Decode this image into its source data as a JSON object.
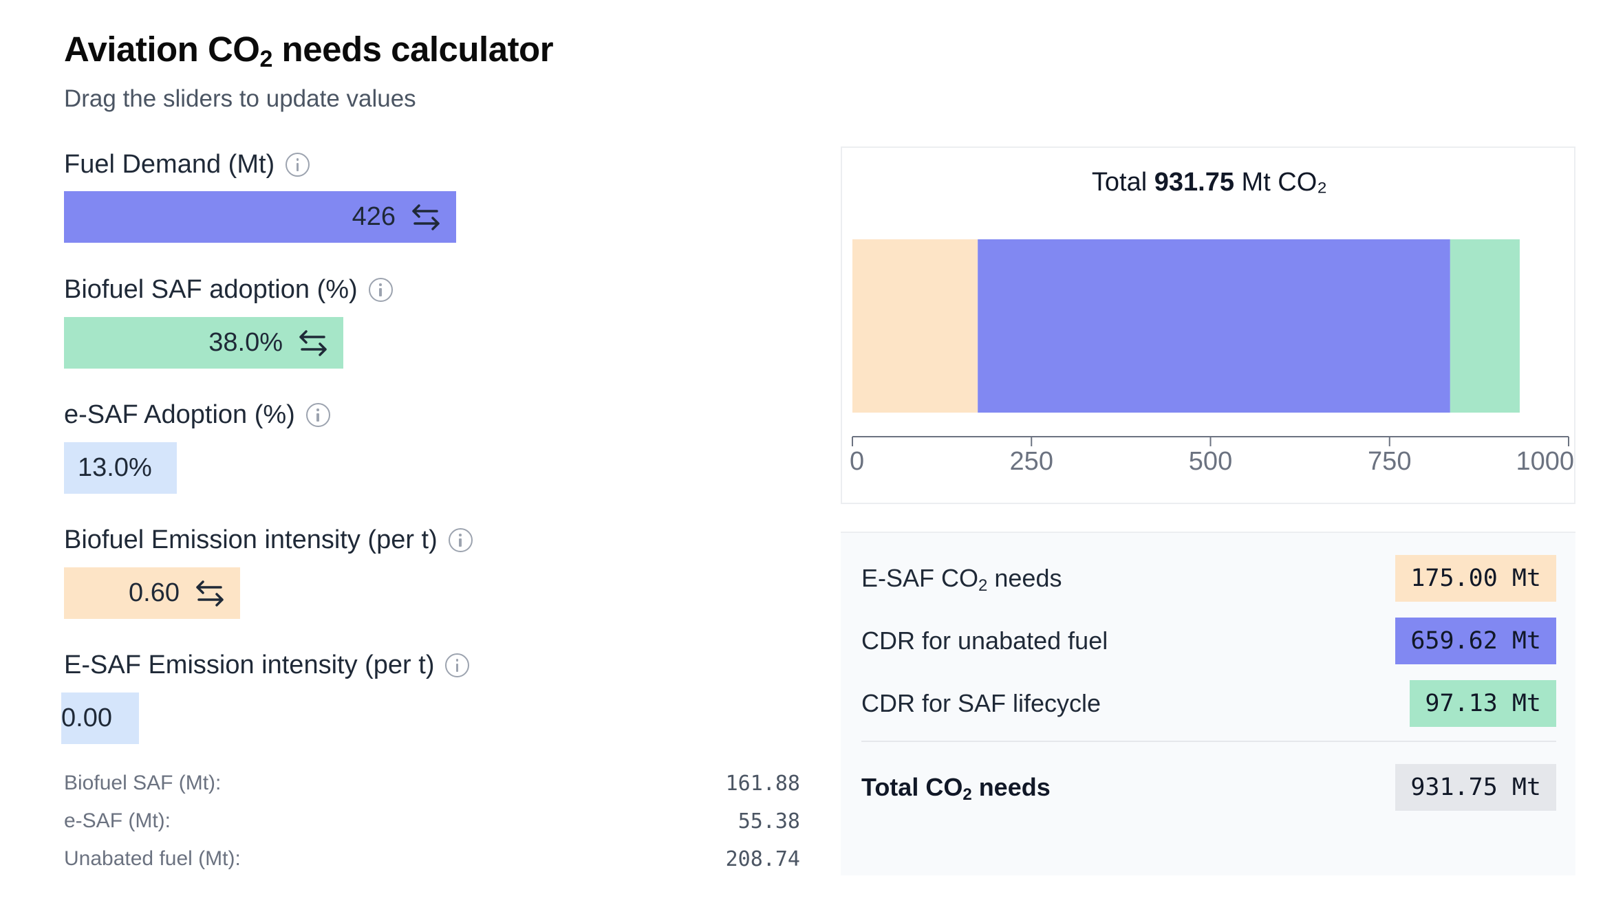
{
  "header": {
    "title_main": "Aviation CO",
    "title_sub": "2",
    "title_rest": " needs calculator",
    "subtitle": "Drag the sliders to update values"
  },
  "controls": [
    {
      "label": "Fuel Demand (Mt)",
      "value": "426",
      "color": "#8188f2",
      "fraction": 0.57
    },
    {
      "label": "Biofuel SAF adoption (%)",
      "value": "38.0%",
      "color": "#a6e6c8",
      "fraction": 0.38
    },
    {
      "label": "e-SAF Adoption (%)",
      "value": "13.0%",
      "color": "#d5e5fb",
      "fraction": 0.13
    },
    {
      "label": "Biofuel Emission intensity (per t)",
      "value": "0.60",
      "color": "#fde4c6",
      "fraction": 0.6
    },
    {
      "label": "E-SAF Emission intensity (per t)",
      "value": "0.00",
      "color": "#d5e5fb",
      "fraction": 0.0
    }
  ],
  "stats": [
    {
      "label": "Biofuel SAF (Mt):",
      "value": "161.88"
    },
    {
      "label": "e-SAF (Mt):",
      "value": "55.38"
    },
    {
      "label": "Unabated fuel (Mt):",
      "value": "208.74"
    }
  ],
  "chart_data": {
    "type": "bar",
    "orientation": "horizontal-stacked",
    "title_prefix": "Total ",
    "title_value": "931.75",
    "title_unit": " Mt CO₂",
    "categories": [
      "Total"
    ],
    "series": [
      {
        "values": [
          175.0
        ],
        "color": "#fde4c6"
      },
      {
        "values": [
          659.62
        ],
        "color": "#8188f2"
      },
      {
        "values": [
          97.13
        ],
        "color": "#a6e6c8"
      }
    ],
    "xlim": [
      0,
      1000
    ],
    "xticks": [
      "0",
      "250",
      "500",
      "750",
      "1000"
    ],
    "xtick_values": [
      0,
      250,
      500,
      750,
      1000
    ],
    "grid": false
  },
  "summary": {
    "rows": [
      {
        "label_a": "E-SAF CO",
        "label_sub": "2",
        "label_b": " needs",
        "value": "175.00 Mt",
        "color": "#fde4c6"
      },
      {
        "label_a": "CDR for unabated fuel",
        "label_sub": "",
        "label_b": "",
        "value": "659.62 Mt",
        "color": "#8188f2"
      },
      {
        "label_a": "CDR for SAF lifecycle",
        "label_sub": "",
        "label_b": "",
        "value": "97.13 Mt",
        "color": "#a6e6c8"
      }
    ],
    "total": {
      "label_a": "Total CO",
      "label_sub": "2",
      "label_b": " needs",
      "value": "931.75 Mt",
      "color": "#e5e7eb"
    }
  }
}
